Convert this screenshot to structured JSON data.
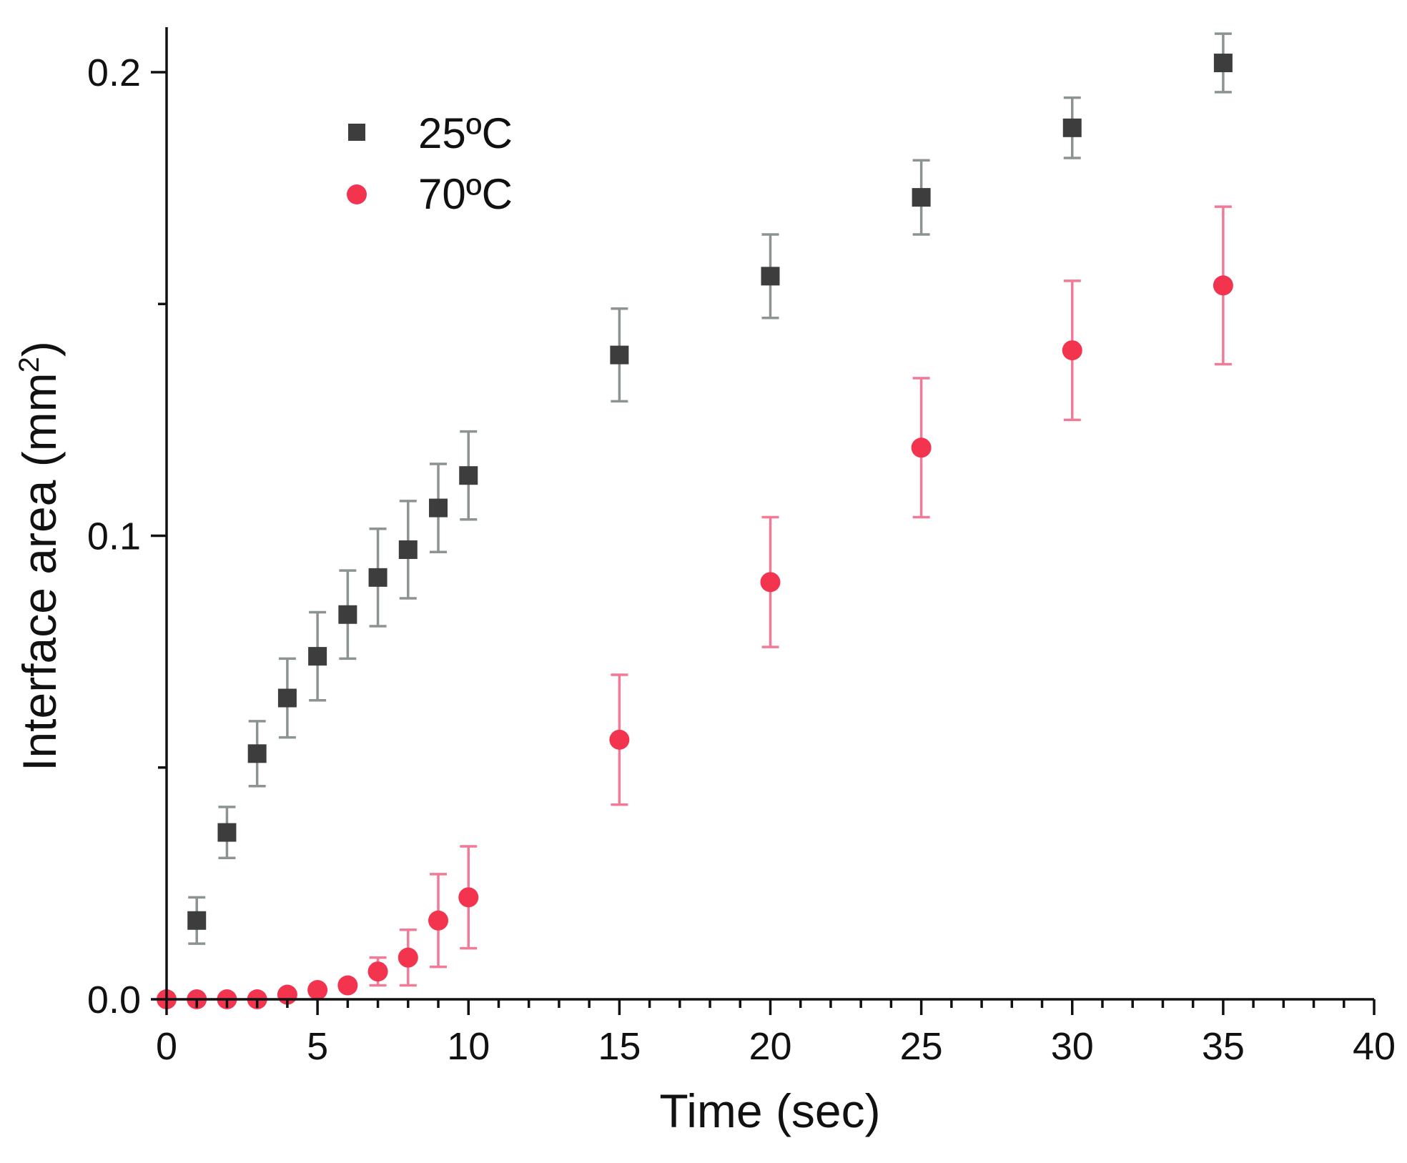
{
  "chart_data": {
    "type": "scatter",
    "title": "",
    "xlabel": "Time (sec)",
    "ylabel": "Interface area (mm",
    "ylabel_superscript": "2",
    "ylabel_suffix": ")",
    "xlim": [
      0,
      40
    ],
    "ylim": [
      0,
      0.21
    ],
    "x_ticks": [
      0,
      5,
      10,
      15,
      20,
      25,
      30,
      35,
      40
    ],
    "x_tick_labels": [
      "0",
      "5",
      "10",
      "15",
      "20",
      "25",
      "30",
      "35",
      "40"
    ],
    "x_minor_step": 1,
    "y_ticks": [
      0.0,
      0.1,
      0.2
    ],
    "y_tick_labels": [
      "0.0",
      "0.1",
      "0.2"
    ],
    "y_minor_ticks": [
      0.05,
      0.15
    ],
    "grid": false,
    "legend_position": "top-left",
    "series": [
      {
        "name": "25ºC",
        "marker": "square",
        "color": "#3d3d3d",
        "errorbar_color": "#8c948f",
        "x": [
          1,
          2,
          3,
          4,
          5,
          6,
          7,
          8,
          9,
          10,
          15,
          20,
          25,
          30,
          35
        ],
        "y": [
          0.017,
          0.036,
          0.053,
          0.065,
          0.074,
          0.083,
          0.091,
          0.097,
          0.106,
          0.113,
          0.139,
          0.156,
          0.173,
          0.188,
          0.202
        ],
        "err": [
          0.005,
          0.0055,
          0.007,
          0.0085,
          0.0095,
          0.0095,
          0.0105,
          0.0105,
          0.0095,
          0.0095,
          0.01,
          0.009,
          0.008,
          0.0065,
          0.0063
        ]
      },
      {
        "name": "70ºC",
        "marker": "circle",
        "color": "#f2344f",
        "errorbar_color": "#f27a96",
        "x": [
          0,
          1,
          2,
          3,
          4,
          5,
          6,
          7,
          8,
          9,
          10,
          15,
          20,
          25,
          30,
          35
        ],
        "y": [
          0.0,
          0.0,
          0.0,
          0.0,
          0.001,
          0.002,
          0.003,
          0.006,
          0.009,
          0.017,
          0.022,
          0.056,
          0.09,
          0.119,
          0.14,
          0.154
        ],
        "err": [
          0.0,
          0.0,
          0.0,
          0.0,
          0.0,
          0.0,
          0.001,
          0.003,
          0.006,
          0.01,
          0.011,
          0.014,
          0.014,
          0.015,
          0.015,
          0.017
        ]
      }
    ]
  }
}
